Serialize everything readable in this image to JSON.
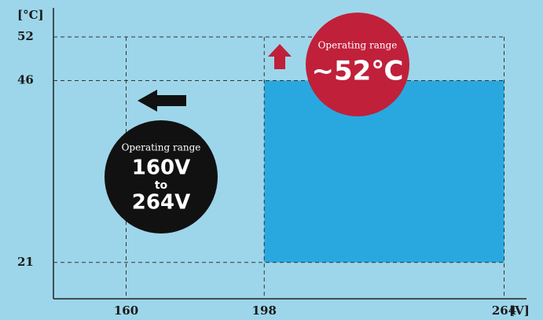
{
  "chart_data": {
    "type": "range",
    "x_label": "[V]",
    "y_label": "[°C]",
    "x_range": [
      198,
      264
    ],
    "y_range": [
      21,
      46
    ],
    "color": "#29a8e0",
    "xlim": [
      140,
      268
    ],
    "xticks": [
      160,
      198,
      264
    ],
    "ylim": [
      16,
      56
    ],
    "yticks": [
      21,
      46,
      52
    ],
    "annotations": [
      {
        "label": "Operating range",
        "value": "~52℃"
      },
      {
        "label": "Operating range",
        "from": "160V",
        "to": "to",
        "until": "264V"
      }
    ]
  }
}
